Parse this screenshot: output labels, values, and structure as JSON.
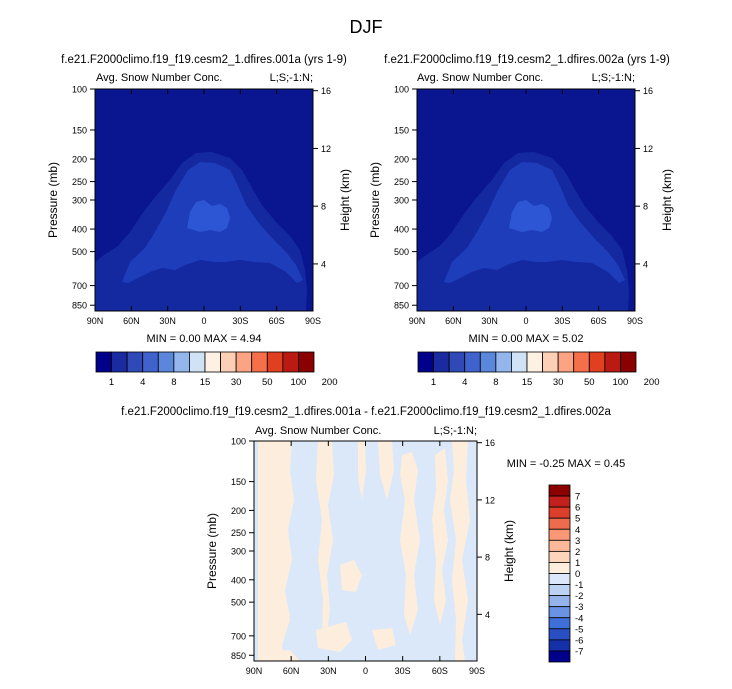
{
  "page_title": "DJF",
  "panels": [
    {
      "case": "f.e21.F2000climo.f19_f19.cesm2_1.dfires.001a (yrs 1-9)",
      "field": "Avg. Snow Number Conc.",
      "region": "L;S;-1:N;",
      "stats": "MIN =  0.00  MAX =   4.94"
    },
    {
      "case": "f.e21.F2000climo.f19_f19.cesm2_1.dfires.002a (yrs 1-9)",
      "field": "Avg. Snow Number Conc.",
      "region": "L;S;-1:N;",
      "stats": "MIN =  0.00  MAX =   5.02"
    },
    {
      "case": "f.e21.F2000climo.f19_f19.cesm2_1.dfires.001a - f.e21.F2000climo.f19_f19.cesm2_1.dfires.002a",
      "field": "Avg. Snow Number Conc.",
      "region": "L;S;-1:N;",
      "stats": "MIN = -0.25  MAX =   0.45"
    }
  ],
  "colors": {
    "abs_scale": [
      "#00008b",
      "#1a2aa0",
      "#2f4ab7",
      "#3f62cc",
      "#5a86dc",
      "#93b6ec",
      "#cfe2f6",
      "#fdf1e4",
      "#fdd0b6",
      "#fca383",
      "#f56f4a",
      "#e0401f",
      "#bb1a12",
      "#8b0000"
    ],
    "diff_scale": [
      "#00008b",
      "#1530a8",
      "#2a4fc4",
      "#3f6fd8",
      "#6a93e4",
      "#95b4ec",
      "#bcd2f3",
      "#dbe8fa",
      "#fdeddd",
      "#fdd5bb",
      "#fcb99a",
      "#f99876",
      "#ef6b4d",
      "#dd3e2c",
      "#c1201c",
      "#8b0000"
    ],
    "bg_abs": "#0a1690",
    "layer1": "#14299f",
    "layer2": "#1e3dba",
    "layer3": "#2c56d4"
  },
  "chart_data": [
    {
      "type": "heatmap",
      "title": "Avg. Snow Number Conc.",
      "xlabel": "",
      "ylabel": "Pressure (mb)",
      "ylabel_right": "Height (km)",
      "x_ticks": [
        "90N",
        "60N",
        "30N",
        "0",
        "30S",
        "60S",
        "90S"
      ],
      "y_ticks": [
        "100",
        "150",
        "200",
        "250",
        "300",
        "400",
        "500",
        "700",
        "850"
      ],
      "y_right_ticks": [
        "16",
        "12",
        "8",
        "4"
      ],
      "min": 0.0,
      "max": 4.94,
      "colorbar_labels": [
        "1",
        "4",
        "8",
        "15",
        "30",
        "50",
        "100",
        "200"
      ]
    },
    {
      "type": "heatmap",
      "title": "Avg. Snow Number Conc.",
      "xlabel": "",
      "ylabel": "Pressure (mb)",
      "ylabel_right": "Height (km)",
      "x_ticks": [
        "90N",
        "60N",
        "30N",
        "0",
        "30S",
        "60S",
        "90S"
      ],
      "y_ticks": [
        "100",
        "150",
        "200",
        "250",
        "300",
        "400",
        "500",
        "700",
        "850"
      ],
      "y_right_ticks": [
        "16",
        "12",
        "8",
        "4"
      ],
      "min": 0.0,
      "max": 5.02,
      "colorbar_labels": [
        "1",
        "4",
        "8",
        "15",
        "30",
        "50",
        "100",
        "200"
      ]
    },
    {
      "type": "heatmap",
      "title": "Avg. Snow Number Conc.",
      "xlabel": "",
      "ylabel": "Pressure (mb)",
      "ylabel_right": "Height (km)",
      "x_ticks": [
        "90N",
        "60N",
        "30N",
        "0",
        "30S",
        "60S",
        "90S"
      ],
      "y_ticks": [
        "100",
        "150",
        "200",
        "250",
        "300",
        "400",
        "500",
        "700",
        "850"
      ],
      "y_right_ticks": [
        "16",
        "12",
        "8",
        "4"
      ],
      "min": -0.25,
      "max": 0.45,
      "colorbar_labels": [
        "7",
        "6",
        "5",
        "4",
        "3",
        "2",
        "1",
        "0",
        "-1",
        "-2",
        "-3",
        "-4",
        "-5",
        "-6",
        "-7"
      ]
    }
  ]
}
